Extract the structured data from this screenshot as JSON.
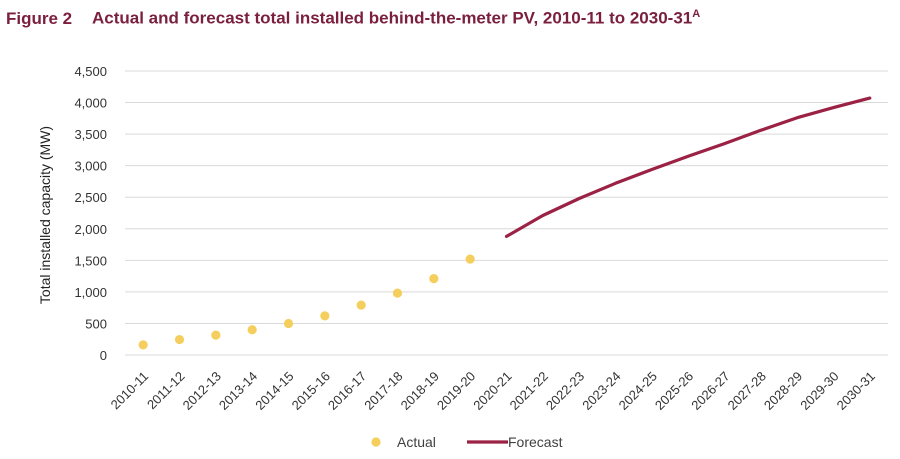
{
  "figure": {
    "label": "Figure 2",
    "title": "Actual and forecast total installed behind-the-meter PV, 2010-11 to 2030-31",
    "title_sup": "A"
  },
  "chart_data": {
    "type": "line",
    "categories": [
      "2010-11",
      "2011-12",
      "2012-13",
      "2013-14",
      "2014-15",
      "2015-16",
      "2016-17",
      "2017-18",
      "2018-19",
      "2019-20",
      "2020-21",
      "2021-22",
      "2022-23",
      "2023-24",
      "2024-25",
      "2025-26",
      "2026-27",
      "2027-28",
      "2028-29",
      "2029-30",
      "2030-31"
    ],
    "series": [
      {
        "name": "Actual",
        "kind": "scatter",
        "color": "#f5cf5d",
        "values": [
          160,
          245,
          315,
          400,
          500,
          620,
          790,
          980,
          1210,
          1520,
          null,
          null,
          null,
          null,
          null,
          null,
          null,
          null,
          null,
          null,
          null
        ]
      },
      {
        "name": "Forecast",
        "kind": "line",
        "color": "#9b2244",
        "values": [
          null,
          null,
          null,
          null,
          null,
          null,
          null,
          null,
          null,
          null,
          1880,
          2210,
          2480,
          2720,
          2940,
          3150,
          3350,
          3560,
          3760,
          3920,
          4070
        ]
      }
    ],
    "ylabel": "Total installed capacity (MW)",
    "xlabel": "",
    "ylim": [
      0,
      4500
    ],
    "yticks": [
      0,
      500,
      1000,
      1500,
      2000,
      2500,
      3000,
      3500,
      4000,
      4500
    ],
    "ytick_labels": [
      "0",
      "500",
      "1,000",
      "1,500",
      "2,000",
      "2,500",
      "3,000",
      "3,500",
      "4,000",
      "4,500"
    ],
    "grid": "horizontal",
    "legend": "bottom-center"
  }
}
